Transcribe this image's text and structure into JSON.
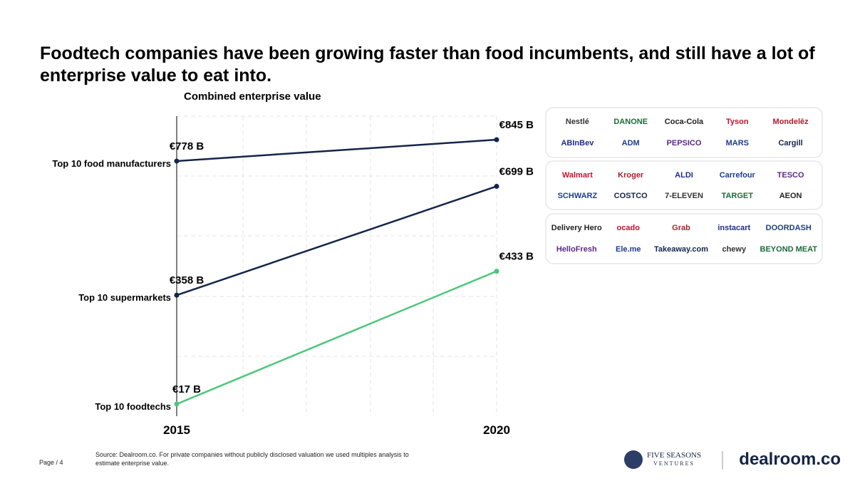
{
  "title": "Foodtech companies have been growing faster than food incumbents, and still have a lot of enterprise value to eat into.",
  "chart_data": {
    "type": "line",
    "title": "Combined enterprise value",
    "x": [
      "2015",
      "2020"
    ],
    "series": [
      {
        "name": "Top 10 food manufacturers",
        "values": [
          778,
          845
        ],
        "labels": [
          "€778 B",
          "€845 B"
        ],
        "color": "#14254a"
      },
      {
        "name": "Top 10 supermarkets",
        "values": [
          358,
          699
        ],
        "labels": [
          "€358 B",
          "€699 B"
        ],
        "color": "#14254a"
      },
      {
        "name": "Top 10 foodtechs",
        "values": [
          17,
          433
        ],
        "labels": [
          "€17 B",
          "€433 B"
        ],
        "color": "#4cc77a"
      }
    ],
    "ylabel": "",
    "xlabel": "",
    "grid": true
  },
  "logos": {
    "manufacturers": [
      "Nestlé",
      "DANONE",
      "Coca-Cola",
      "Tyson",
      "Mondelēz",
      "ABInBev",
      "ADM",
      "PEPSICO",
      "MARS",
      "Cargill"
    ],
    "supermarkets": [
      "Walmart",
      "Kroger",
      "ALDI",
      "Carrefour",
      "TESCO",
      "SCHWARZ",
      "COSTCO",
      "7-ELEVEN",
      "TARGET",
      "AEON"
    ],
    "foodtechs": [
      "Delivery Hero",
      "ocado",
      "Grab",
      "instacart",
      "DOORDASH",
      "HelloFresh",
      "Ele.me",
      "Takeaway.com",
      "chewy",
      "BEYOND MEAT"
    ]
  },
  "footer": {
    "page": "Page / 4",
    "source": "Source: Dealroom.co. For private companies without publicly disclosed valuation we used multiples analysis to estimate enterprise value.",
    "fsv": "FIVE SEASONS",
    "fsv_sub": "VENTURES",
    "brand": "dealroom.co"
  }
}
